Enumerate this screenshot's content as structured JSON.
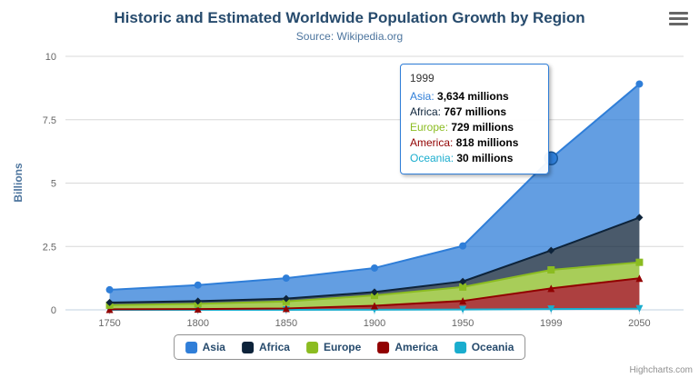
{
  "title": "Historic and Estimated Worldwide Population Growth by Region",
  "subtitle": "Source: Wikipedia.org",
  "y_axis_title": "Billions",
  "credits": "Highcharts.com",
  "chart_data": {
    "type": "area",
    "stacked": true,
    "title": "Historic and Estimated Worldwide Population Growth by Region",
    "subtitle": "Source: Wikipedia.org",
    "categories": [
      "1750",
      "1800",
      "1850",
      "1900",
      "1950",
      "1999",
      "2050"
    ],
    "unit": "millions",
    "ylabel": "Billions",
    "ylim": [
      0,
      10
    ],
    "y_ticks": [
      0,
      2.5,
      5,
      7.5,
      10
    ],
    "grid": true,
    "legend_position": "bottom",
    "series": [
      {
        "name": "Asia",
        "color": "#2f7ed8",
        "marker": "circle",
        "values_millions": [
          502,
          635,
          809,
          947,
          1402,
          3634,
          5268
        ]
      },
      {
        "name": "Africa",
        "color": "#0d233a",
        "marker": "diamond",
        "values_millions": [
          106,
          107,
          111,
          133,
          221,
          767,
          1766
        ]
      },
      {
        "name": "Europe",
        "color": "#8bbc21",
        "marker": "square",
        "values_millions": [
          163,
          203,
          276,
          408,
          547,
          729,
          628
        ]
      },
      {
        "name": "America",
        "color": "#910000",
        "marker": "triangle",
        "values_millions": [
          18,
          31,
          54,
          156,
          339,
          818,
          1201
        ]
      },
      {
        "name": "Oceania",
        "color": "#1aadce",
        "marker": "triangle-down",
        "values_millions": [
          2,
          2,
          2,
          6,
          13,
          30,
          46
        ]
      }
    ],
    "hover": {
      "series": "Asia",
      "category": "1999"
    }
  },
  "tooltip": {
    "header": "1999",
    "border_color": "#2f7ed8",
    "rows": [
      {
        "name": "Asia",
        "value": "3,634 millions",
        "color": "#2f7ed8"
      },
      {
        "name": "Africa",
        "value": "767 millions",
        "color": "#0d233a"
      },
      {
        "name": "Europe",
        "value": "729 millions",
        "color": "#8bbc21"
      },
      {
        "name": "America",
        "value": "818 millions",
        "color": "#910000"
      },
      {
        "name": "Oceania",
        "value": "30 millions",
        "color": "#1aadce"
      }
    ]
  },
  "legend": {
    "items": [
      {
        "label": "Asia",
        "color": "#2f7ed8"
      },
      {
        "label": "Africa",
        "color": "#0d233a"
      },
      {
        "label": "Europe",
        "color": "#8bbc21"
      },
      {
        "label": "America",
        "color": "#910000"
      },
      {
        "label": "Oceania",
        "color": "#1aadce"
      }
    ]
  }
}
